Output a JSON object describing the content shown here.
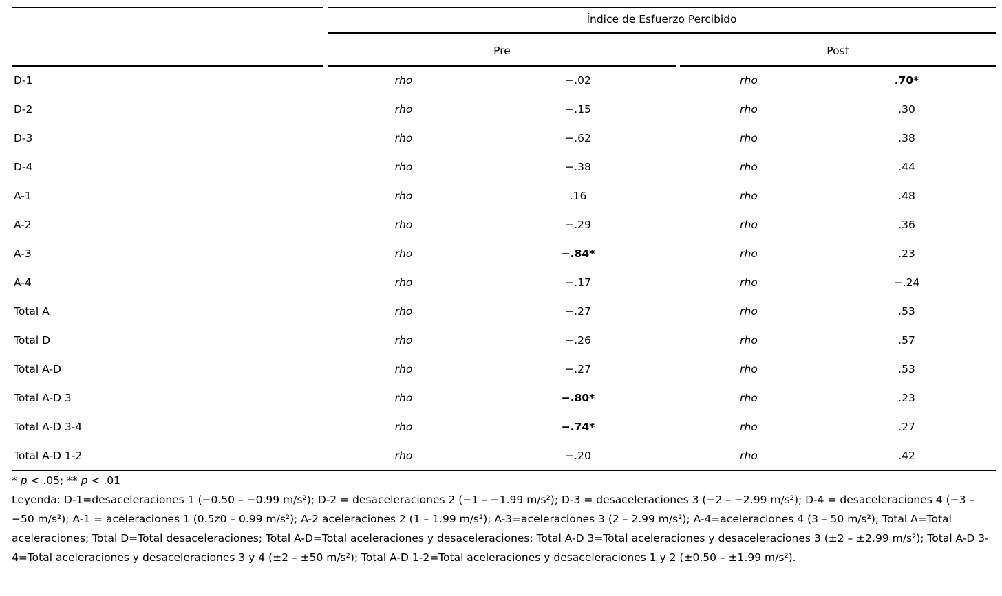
{
  "table": {
    "spanner": "Índice de Esfuerzo Percibido",
    "columns": {
      "pre": "Pre",
      "post": "Post"
    },
    "stat_symbol": "rho",
    "rows": [
      {
        "label": "D-1",
        "pre": "−.02",
        "pre_bold": false,
        "post": ".70*",
        "post_bold": true
      },
      {
        "label": "D-2",
        "pre": "−.15",
        "pre_bold": false,
        "post": ".30",
        "post_bold": false
      },
      {
        "label": "D-3",
        "pre": "−.62",
        "pre_bold": false,
        "post": ".38",
        "post_bold": false
      },
      {
        "label": "D-4",
        "pre": "−.38",
        "pre_bold": false,
        "post": ".44",
        "post_bold": false
      },
      {
        "label": "A-1",
        "pre": ".16",
        "pre_bold": false,
        "post": ".48",
        "post_bold": false
      },
      {
        "label": "A-2",
        "pre": "−.29",
        "pre_bold": false,
        "post": ".36",
        "post_bold": false
      },
      {
        "label": "A-3",
        "pre": "−.84*",
        "pre_bold": true,
        "post": ".23",
        "post_bold": false
      },
      {
        "label": "A-4",
        "pre": "−.17",
        "pre_bold": false,
        "post": "−.24",
        "post_bold": false
      },
      {
        "label": "Total A",
        "pre": "−.27",
        "pre_bold": false,
        "post": ".53",
        "post_bold": false
      },
      {
        "label": "Total D",
        "pre": "−.26",
        "pre_bold": false,
        "post": ".57",
        "post_bold": false
      },
      {
        "label": "Total A-D",
        "pre": "−.27",
        "pre_bold": false,
        "post": ".53",
        "post_bold": false
      },
      {
        "label": "Total A-D 3",
        "pre": "−.80*",
        "pre_bold": true,
        "post": ".23",
        "post_bold": false
      },
      {
        "label": "Total A-D 3-4",
        "pre": "−.74*",
        "pre_bold": true,
        "post": ".27",
        "post_bold": false
      },
      {
        "label": "Total A-D 1-2",
        "pre": "−.20",
        "pre_bold": false,
        "post": ".42",
        "post_bold": false
      }
    ]
  },
  "footnotes": {
    "sig": {
      "s1": "* ",
      "p1": "p",
      "s2": " < .05; ** ",
      "p2": "p",
      "s3": " < .01"
    },
    "legend": "Leyenda: D-1=desaceleraciones 1 (−0.50 – −0.99 m/s²); D-2 = desaceleraciones 2 (−1 – −1.99 m/s²); D-3 = desaceleraciones 3 (−2 – −2.99 m/s²); D-4 = desaceleraciones 4 (−3 – −50 m/s²); A-1 = aceleraciones 1 (0.5z0 – 0.99 m/s²); A-2 aceleraciones 2 (1 – 1.99 m/s²); A-3=aceleraciones 3 (2 – 2.99 m/s²); A-4=aceleraciones 4 (3 – 50 m/s²); Total A=Total aceleraciones; Total D=Total desaceleraciones; Total A-D=Total aceleraciones y desaceleraciones; Total A-D 3=Total aceleraciones y desaceleraciones 3 (±2 – ±2.99 m/s²); Total A-D 3-4=Total aceleraciones y desaceleraciones 3 y 4 (±2 – ±50 m/s²); Total A-D 1-2=Total aceleraciones y desaceleraciones 1 y 2 (±0.50 – ±1.99 m/s²)."
  }
}
